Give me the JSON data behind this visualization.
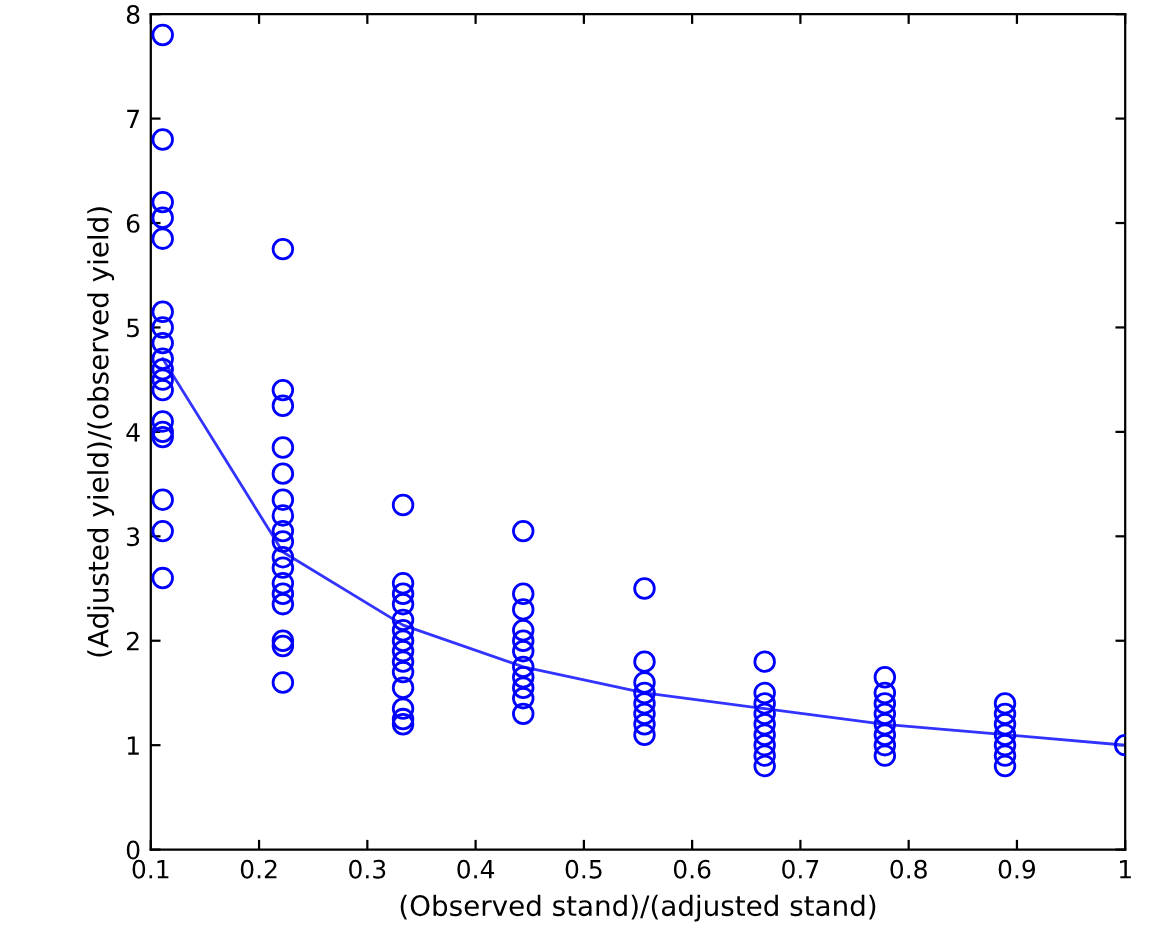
{
  "chart_data": {
    "type": "scatter",
    "xlabel": "(Observed stand)/(adjusted stand)",
    "ylabel": "(Adjusted yield)/(observed yield)",
    "xlim": [
      0.1,
      1
    ],
    "ylim": [
      0,
      8
    ],
    "xticks": [
      0.1,
      0.2,
      0.3,
      0.4,
      0.5,
      0.6,
      0.7,
      0.8,
      0.9,
      1
    ],
    "yticks": [
      0,
      1,
      2,
      3,
      4,
      5,
      6,
      7,
      8
    ],
    "grid": false,
    "legend": false,
    "series": [
      {
        "color": "#0000ff",
        "marker": "circle",
        "x": [
          0.111,
          0.111,
          0.111,
          0.111,
          0.111,
          0.111,
          0.111,
          0.111,
          0.111,
          0.111,
          0.111,
          0.111,
          0.111,
          0.111,
          0.111,
          0.111,
          0.111,
          0.111,
          0.222,
          0.222,
          0.222,
          0.222,
          0.222,
          0.222,
          0.222,
          0.222,
          0.222,
          0.222,
          0.222,
          0.222,
          0.222,
          0.222,
          0.222,
          0.222,
          0.222,
          0.333,
          0.333,
          0.333,
          0.333,
          0.333,
          0.333,
          0.333,
          0.333,
          0.333,
          0.333,
          0.333,
          0.333,
          0.333,
          0.333,
          0.444,
          0.444,
          0.444,
          0.444,
          0.444,
          0.444,
          0.444,
          0.444,
          0.444,
          0.444,
          0.444,
          0.556,
          0.556,
          0.556,
          0.556,
          0.556,
          0.556,
          0.556,
          0.556,
          0.667,
          0.667,
          0.667,
          0.667,
          0.667,
          0.667,
          0.667,
          0.667,
          0.667,
          0.778,
          0.778,
          0.778,
          0.778,
          0.778,
          0.778,
          0.778,
          0.778,
          0.889,
          0.889,
          0.889,
          0.889,
          0.889,
          0.889,
          0.889,
          1
        ],
        "values": [
          7.8,
          6.8,
          6.2,
          6.05,
          5.85,
          5.15,
          5.0,
          4.85,
          4.7,
          4.6,
          4.5,
          4.4,
          4.1,
          4.0,
          3.95,
          3.35,
          3.05,
          2.6,
          5.75,
          4.4,
          4.25,
          3.85,
          3.6,
          3.35,
          3.2,
          3.05,
          2.95,
          2.8,
          2.7,
          2.55,
          2.45,
          2.35,
          2.0,
          1.95,
          1.6,
          3.3,
          2.55,
          2.45,
          2.35,
          2.2,
          2.1,
          2.0,
          1.9,
          1.8,
          1.7,
          1.55,
          1.35,
          1.25,
          1.2,
          3.05,
          2.45,
          2.3,
          2.1,
          2.0,
          1.9,
          1.75,
          1.65,
          1.55,
          1.45,
          1.3,
          2.5,
          1.8,
          1.6,
          1.5,
          1.4,
          1.3,
          1.2,
          1.1,
          1.8,
          1.5,
          1.4,
          1.3,
          1.2,
          1.1,
          1.0,
          0.9,
          0.8,
          1.65,
          1.5,
          1.4,
          1.3,
          1.2,
          1.1,
          1.0,
          0.9,
          1.4,
          1.3,
          1.2,
          1.1,
          1.0,
          0.9,
          0.8,
          1.0
        ]
      },
      {
        "type": "line",
        "color": "#3333ff",
        "marker": "none",
        "line_style": "solid",
        "x": [
          0.111,
          0.222,
          0.333,
          0.444,
          0.556,
          0.667,
          0.778,
          0.889,
          1
        ],
        "values": [
          4.7,
          2.85,
          2.15,
          1.75,
          1.5,
          1.35,
          1.2,
          1.1,
          1.0
        ]
      }
    ]
  }
}
